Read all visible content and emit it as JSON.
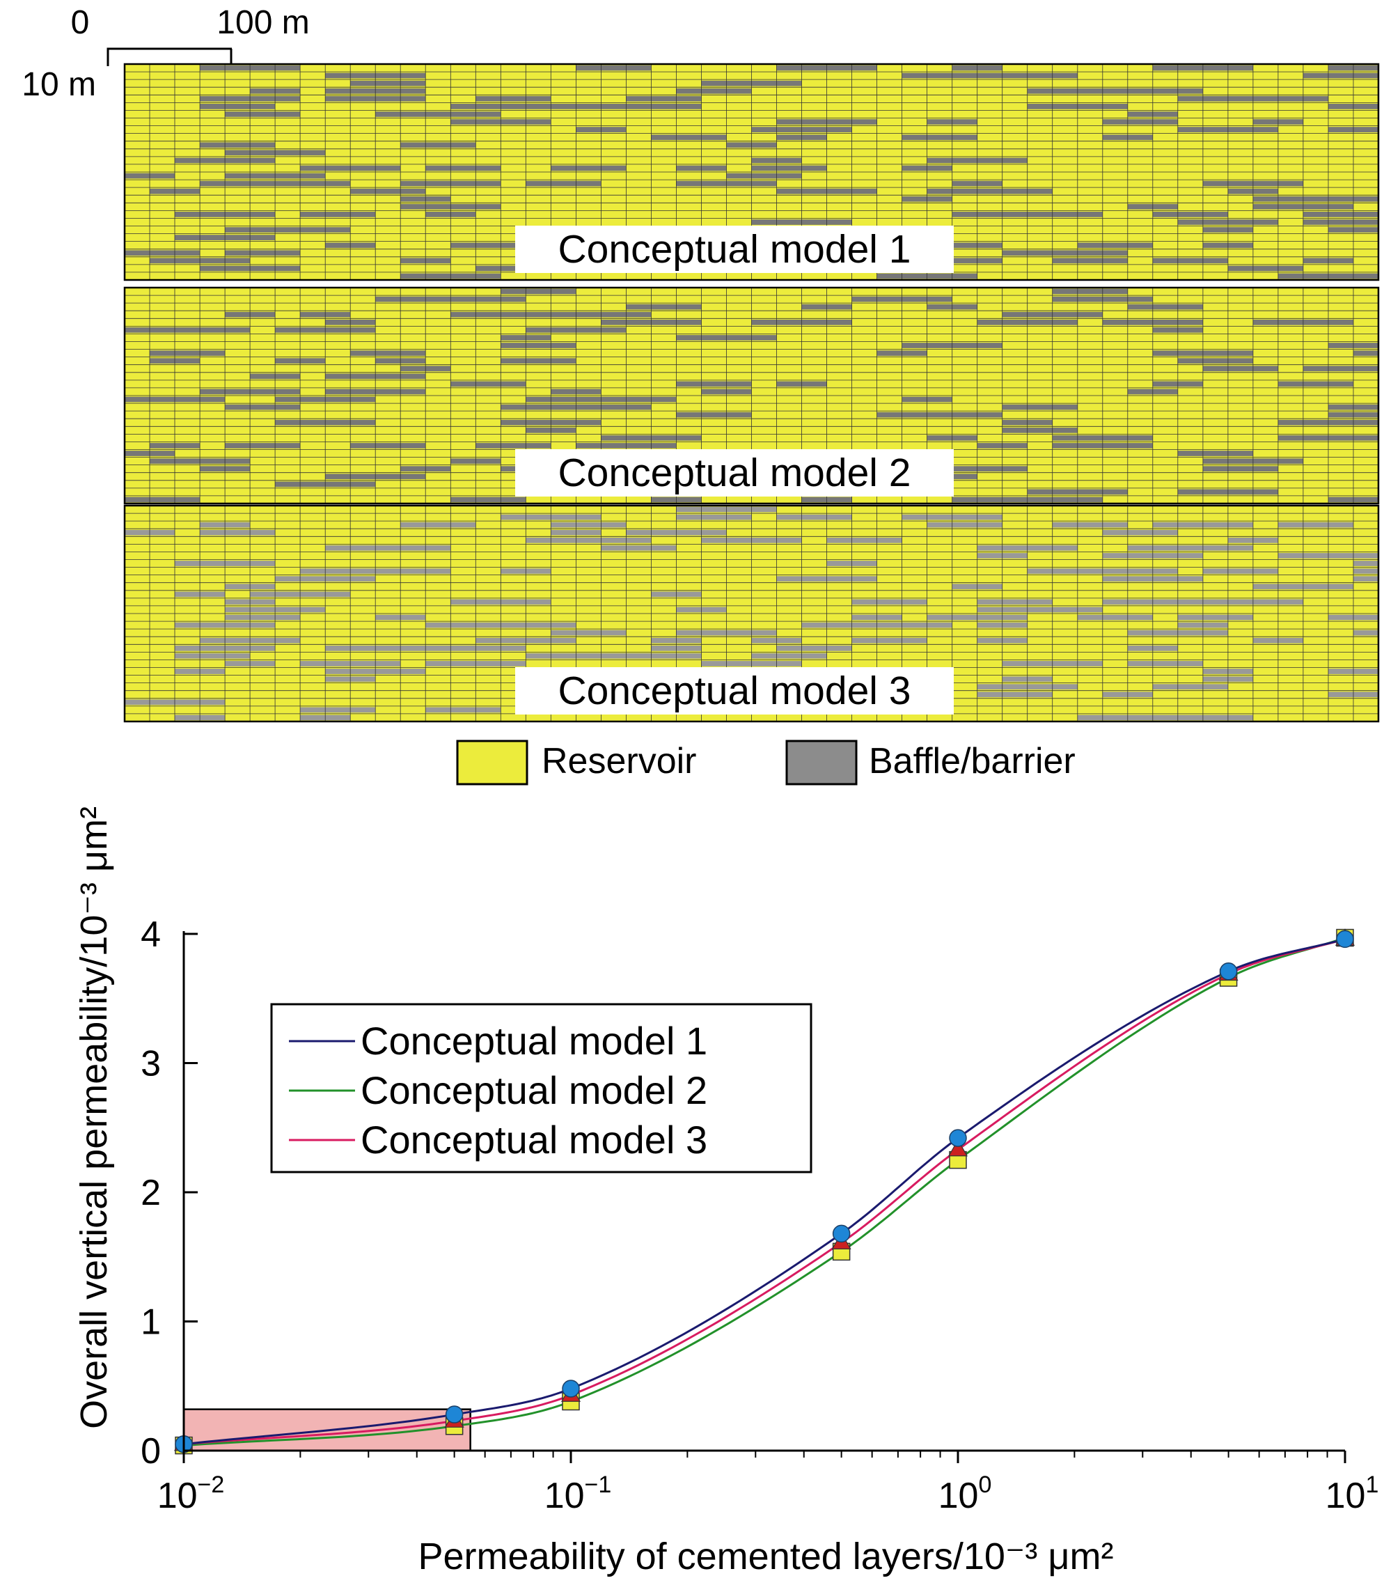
{
  "scale_bar": {
    "zero_label": "0",
    "length_label": "100 m",
    "height_label": "10 m"
  },
  "models": [
    {
      "label": "Conceptual model 1",
      "bar_color": "#777777",
      "seed": 11
    },
    {
      "label": "Conceptual model 2",
      "bar_color": "#777777",
      "seed": 23
    },
    {
      "label": "Conceptual model 3",
      "bar_color": "#999999",
      "seed": 37
    }
  ],
  "models_legend": [
    {
      "label": "Reservoir",
      "color": "#ecec3c"
    },
    {
      "label": "Baffle/barrier",
      "color": "#8c8c8c"
    }
  ],
  "colors": {
    "reservoir": "#ecec3c",
    "grid_line": "#333333",
    "highlight": "#f2b4b4"
  },
  "chart_data": {
    "type": "line",
    "xlabel": "Permeability of cemented layers/10⁻³ μm²",
    "ylabel": "Overall vertical permeability/10⁻³ μm²",
    "x_scale": "log",
    "xlim": [
      0.01,
      10
    ],
    "ylim": [
      0,
      4
    ],
    "x_ticks": [
      0.01,
      0.1,
      1,
      10
    ],
    "x_tick_labels": [
      {
        "base": "10",
        "exp": "−2"
      },
      {
        "base": "10",
        "exp": "−1"
      },
      {
        "base": "10",
        "exp": "0"
      },
      {
        "base": "10",
        "exp": "1"
      }
    ],
    "y_ticks": [
      0,
      1,
      2,
      3,
      4
    ],
    "y_tick_labels": [
      "0",
      "1",
      "2",
      "3",
      "4"
    ],
    "legend_position": "left",
    "highlight_region": {
      "x": [
        0.01,
        0.055
      ],
      "y": [
        0,
        0.32
      ]
    },
    "series": [
      {
        "name": "Conceptual model 1",
        "color": "#1a1a6e",
        "marker": "circle",
        "marker_color": "#1e86d6",
        "x": [
          0.01,
          0.05,
          0.1,
          0.5,
          1,
          5,
          10
        ],
        "y": [
          0.05,
          0.28,
          0.48,
          1.68,
          2.42,
          3.71,
          3.96
        ]
      },
      {
        "name": "Conceptual model 2",
        "color": "#22912a",
        "marker": "square",
        "marker_color": "#ecec3c",
        "x": [
          0.01,
          0.05,
          0.1,
          0.5,
          1,
          5,
          10
        ],
        "y": [
          0.04,
          0.19,
          0.38,
          1.54,
          2.25,
          3.66,
          3.97
        ]
      },
      {
        "name": "Conceptual model 3",
        "color": "#d81b60",
        "marker": "triangle",
        "marker_color": "#cc2020",
        "x": [
          0.01,
          0.05,
          0.1,
          0.5,
          1,
          5,
          10
        ],
        "y": [
          0.05,
          0.23,
          0.43,
          1.61,
          2.33,
          3.69,
          3.96
        ]
      }
    ]
  }
}
